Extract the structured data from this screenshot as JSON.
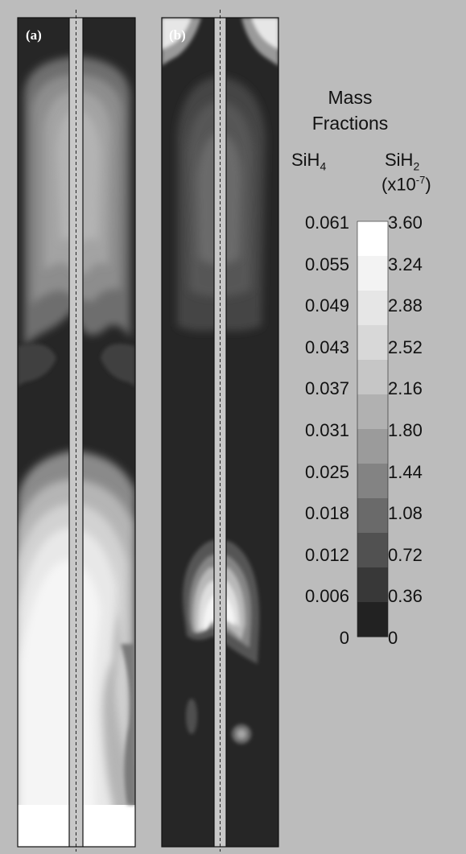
{
  "figure": {
    "panel_a_label": "(a)",
    "panel_b_label": "(b)"
  },
  "legend": {
    "title_line1": "Mass",
    "title_line2": "Fractions",
    "left_species": "SiH",
    "left_sub": "4",
    "right_species": "SiH",
    "right_sub": "2",
    "right_scale_prefix": "(x10",
    "right_scale_exp": "-7",
    "right_scale_suffix": ")",
    "sih4_ticks": [
      "0.061",
      "0.055",
      "0.049",
      "0.043",
      "0.037",
      "0.031",
      "0.025",
      "0.018",
      "0.012",
      "0.006",
      "0"
    ],
    "sih2_ticks": [
      "3.60",
      "3.24",
      "2.88",
      "2.52",
      "2.16",
      "1.80",
      "1.44",
      "1.08",
      "0.72",
      "0.36",
      "0"
    ],
    "colors_top_to_bottom": [
      "#ffffff",
      "#f3f3f3",
      "#e6e6e6",
      "#d8d8d8",
      "#c6c6c6",
      "#b1b1b1",
      "#9b9b9b",
      "#838383",
      "#6a6a6a",
      "#515151",
      "#383838",
      "#222222"
    ]
  }
}
